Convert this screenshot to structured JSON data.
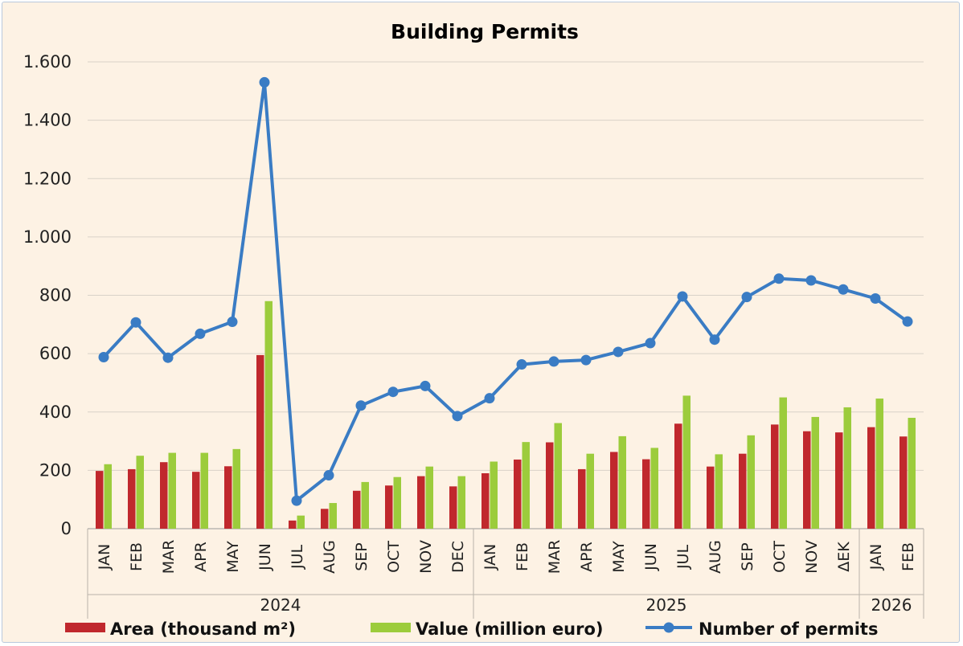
{
  "chart_data": {
    "type": "bar",
    "title": "Building Permits",
    "xlabel": "",
    "ylabel": "",
    "ylim": [
      0,
      1600
    ],
    "yticks": [
      0,
      200,
      400,
      600,
      800,
      1000,
      1200,
      1400,
      1600
    ],
    "ytick_labels": [
      "0",
      "200",
      "400",
      "600",
      "800",
      "1.000",
      "1.200",
      "1.400",
      "1.600"
    ],
    "grid": true,
    "legend_position": "bottom",
    "categories": [
      "JAN",
      "FEB",
      "MAR",
      "APR",
      "MAY",
      "JUN",
      "JUL",
      "AUG",
      "SEP",
      "OCT",
      "NOV",
      "DEC",
      "JAN",
      "FEB",
      "MAR",
      "APR",
      "MAY",
      "JUN",
      "JUL",
      "AUG",
      "SEP",
      "OCT",
      "NOV",
      "ΔΕΚ",
      "JAN",
      "FEB"
    ],
    "groups": [
      {
        "label": "2024",
        "count": 12
      },
      {
        "label": "2025",
        "count": 12
      },
      {
        "label": "2026",
        "count": 2
      }
    ],
    "series": [
      {
        "name": "Area (thousand m²)",
        "type": "bar",
        "color": "#c0282d",
        "values": [
          198,
          204,
          228,
          195,
          214,
          595,
          28,
          68,
          130,
          148,
          180,
          145,
          190,
          237,
          296,
          204,
          263,
          238,
          360,
          213,
          257,
          357,
          334,
          330,
          348,
          316
        ]
      },
      {
        "name": "Value (million euro)",
        "type": "bar",
        "color": "#9ccc3c",
        "values": [
          221,
          250,
          260,
          260,
          273,
          780,
          45,
          88,
          160,
          177,
          213,
          180,
          230,
          297,
          362,
          257,
          317,
          277,
          456,
          255,
          320,
          450,
          383,
          416,
          446,
          380
        ]
      },
      {
        "name": "Number of permits",
        "type": "line",
        "color": "#3a7cc4",
        "values": [
          588,
          707,
          586,
          668,
          709,
          1530,
          96,
          183,
          422,
          469,
          489,
          386,
          447,
          563,
          573,
          578,
          606,
          636,
          796,
          648,
          794,
          857,
          851,
          820,
          789,
          710
        ]
      }
    ]
  }
}
